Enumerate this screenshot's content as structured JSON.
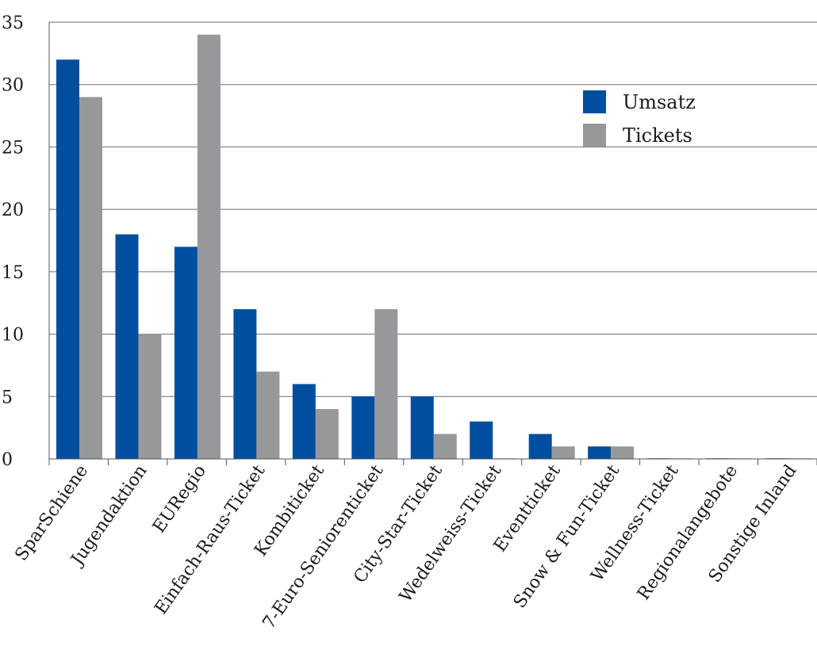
{
  "chart_data": {
    "type": "bar",
    "title": "",
    "xlabel": "",
    "ylabel": "",
    "ylim": [
      0,
      35
    ],
    "yticks": [
      "0",
      "5",
      "10",
      "15",
      "20",
      "25",
      "30",
      "35"
    ],
    "grid": true,
    "legend_position": "top-right",
    "categories": [
      "SparSchiene",
      "Jugendaktion",
      "EURegio",
      "Einfach-Raus-Ticket",
      "Kombiticket",
      "7-Euro-Seniorenticket",
      "City-Star-Ticket",
      "Wedelweiss-Ticket",
      "Eventticket",
      "Snow & Fun-Ticket",
      "Wellness-Ticket",
      "Regionalangebote",
      "Sonstige Inland"
    ],
    "series": [
      {
        "name": "Umsatz",
        "color": "#004f9f",
        "values": [
          32,
          18,
          17,
          12,
          6,
          5,
          5,
          3,
          2,
          1,
          0,
          0,
          0
        ]
      },
      {
        "name": "Tickets",
        "color": "#97989b",
        "values": [
          29,
          10,
          34,
          7,
          4,
          12,
          2,
          0,
          1,
          1,
          0,
          0,
          0
        ]
      }
    ]
  }
}
